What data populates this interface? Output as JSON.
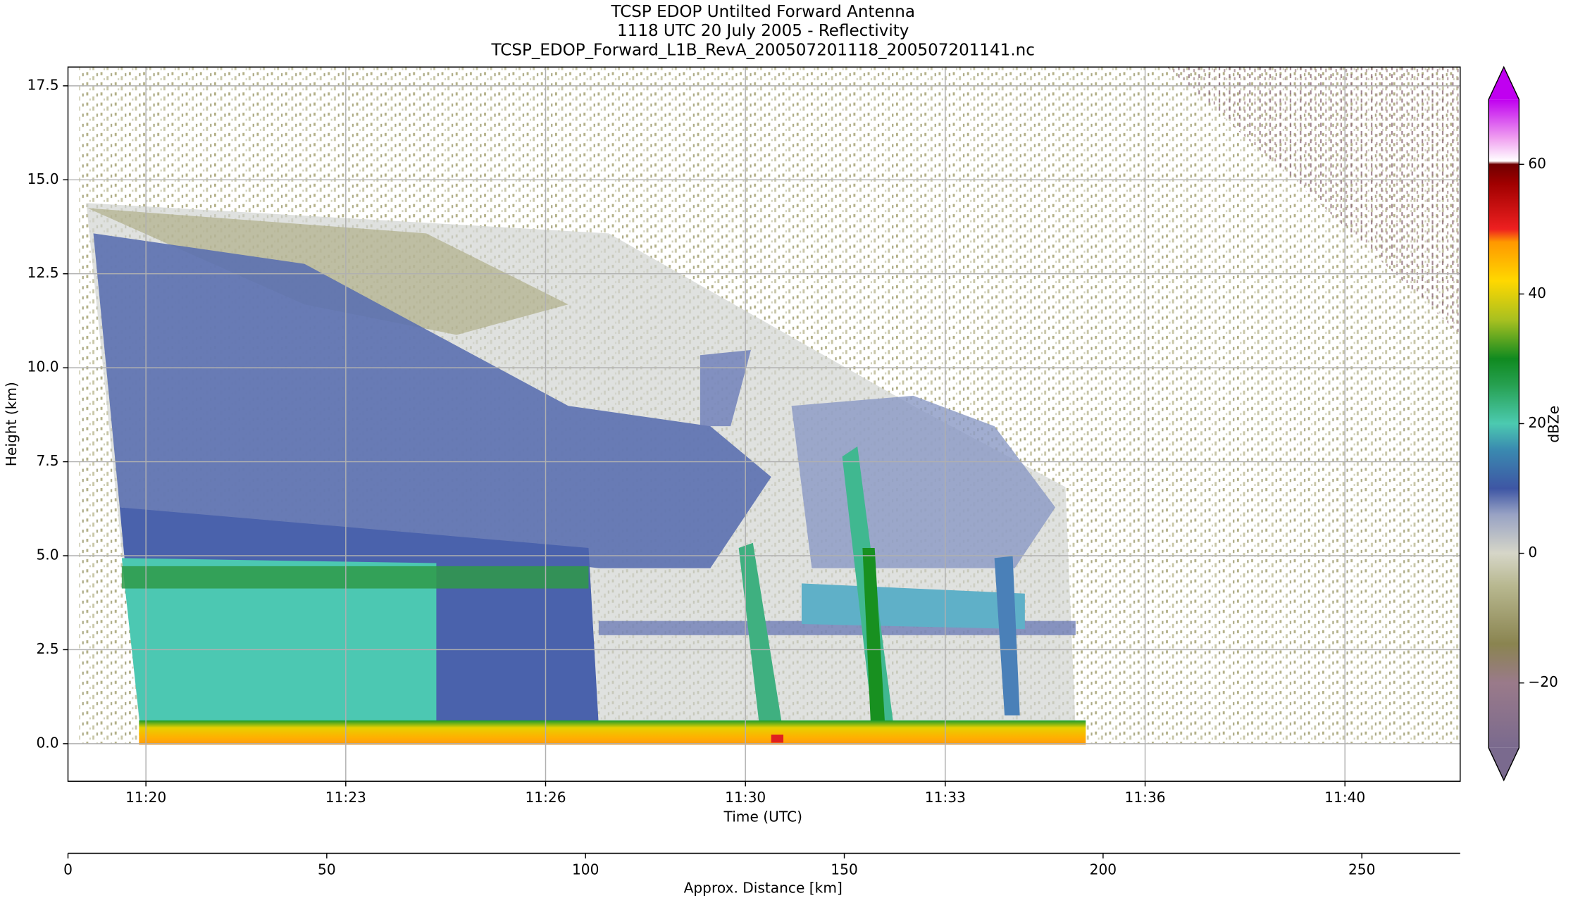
{
  "chart_data": {
    "type": "heatmap",
    "title": "TCSP EDOP Untilted Forward Antenna",
    "subtitle": "1118 UTC 20 July 2005 - Reflectivity",
    "source_file": "TCSP_EDOP_Forward_L1B_RevA_200507201118_200507201141.nc",
    "xlabel": "Time (UTC)",
    "ylabel": "Height (km)",
    "x2label": "Approx. Distance [km]",
    "colorbar_label": "dBZe",
    "xlim": [
      18.83,
      39.73
    ],
    "xticks": [
      {
        "value": 20,
        "label": "11:20"
      },
      {
        "value": 23,
        "label": "11:23"
      },
      {
        "value": 26,
        "label": "11:26"
      },
      {
        "value": 29,
        "label": "11:30"
      },
      {
        "value": 32,
        "label": "11:33"
      },
      {
        "value": 35,
        "label": "11:36"
      },
      {
        "value": 38,
        "label": "11:40"
      }
    ],
    "ylim": [
      -1,
      18
    ],
    "yticks": [
      {
        "value": 0,
        "label": "0.0"
      },
      2.5,
      {
        "value": 5,
        "label": "5.0"
      },
      7.5,
      {
        "value": 10,
        "label": "10.0"
      },
      12.5,
      {
        "value": 15,
        "label": "15.0"
      },
      17.5
    ],
    "x2lim": [
      0,
      269
    ],
    "x2ticks": [
      0,
      50,
      100,
      150,
      200,
      250
    ],
    "clim": [
      -30,
      70
    ],
    "cticks": [
      {
        "value": -20,
        "label": "−20"
      },
      0,
      20,
      40,
      60
    ],
    "grid": true
  }
}
